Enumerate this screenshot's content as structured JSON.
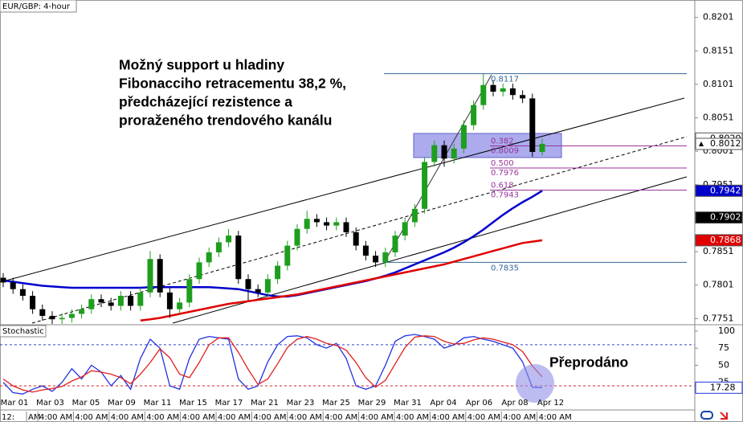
{
  "chart_data": {
    "type": "candlestick",
    "title": "EUR/GBP: 4-hour",
    "annotation": [
      "Možný support u hladiny",
      "Fibonacciho retracementu 38,2 %,",
      "předcházející rezistence a",
      "proraženého trendového kanálu"
    ],
    "ylim": [
      0.7743,
      0.8227
    ],
    "yticks": [
      0.8201,
      0.8151,
      0.8101,
      0.8051,
      0.8001,
      0.7951,
      0.7851,
      0.7801,
      0.7751
    ],
    "candles": {
      "up_color": "#1e9e1e",
      "down_color": "#000000",
      "open": [
        0.7812,
        0.7805,
        0.7795,
        0.7785,
        0.7765,
        0.7755,
        0.775,
        0.7752,
        0.7758,
        0.7765,
        0.778,
        0.7775,
        0.777,
        0.7785,
        0.777,
        0.779,
        0.784,
        0.779,
        0.7765,
        0.7775,
        0.781,
        0.7835,
        0.785,
        0.7865,
        0.7875,
        0.781,
        0.7795,
        0.779,
        0.781,
        0.783,
        0.786,
        0.7885,
        0.79,
        0.7895,
        0.789,
        0.7895,
        0.788,
        0.786,
        0.7845,
        0.7835,
        0.785,
        0.7875,
        0.7895,
        0.7915,
        0.7985,
        0.801,
        0.799,
        0.8005,
        0.804,
        0.807,
        0.81,
        0.809,
        0.8095,
        0.8085,
        0.808,
        0.8
      ],
      "high": [
        0.7819,
        0.7812,
        0.7802,
        0.7792,
        0.7772,
        0.7762,
        0.7759,
        0.7765,
        0.7772,
        0.7787,
        0.7787,
        0.7782,
        0.7792,
        0.7792,
        0.7797,
        0.7852,
        0.7847,
        0.7797,
        0.7782,
        0.7817,
        0.7842,
        0.7857,
        0.7872,
        0.7885,
        0.7882,
        0.7817,
        0.7802,
        0.7817,
        0.7837,
        0.7867,
        0.7892,
        0.7912,
        0.7907,
        0.7902,
        0.7902,
        0.7902,
        0.7887,
        0.7867,
        0.7852,
        0.7857,
        0.7882,
        0.7902,
        0.7922,
        0.7992,
        0.8017,
        0.8017,
        0.8012,
        0.8047,
        0.8077,
        0.8117,
        0.8107,
        0.8102,
        0.8102,
        0.8092,
        0.8087,
        0.802
      ],
      "low": [
        0.7798,
        0.7788,
        0.7778,
        0.7758,
        0.7748,
        0.7743,
        0.7743,
        0.7745,
        0.7751,
        0.7758,
        0.7768,
        0.7763,
        0.7763,
        0.7763,
        0.7763,
        0.7783,
        0.7783,
        0.7752,
        0.7758,
        0.7768,
        0.7803,
        0.7828,
        0.7843,
        0.7858,
        0.7803,
        0.7778,
        0.7783,
        0.7783,
        0.7803,
        0.7823,
        0.7853,
        0.7878,
        0.7888,
        0.7883,
        0.7883,
        0.7873,
        0.7853,
        0.7838,
        0.7828,
        0.7828,
        0.7843,
        0.7868,
        0.7888,
        0.7908,
        0.7978,
        0.7978,
        0.7983,
        0.7998,
        0.8033,
        0.8063,
        0.8083,
        0.8083,
        0.8078,
        0.8073,
        0.7993,
        0.7995
      ],
      "close": [
        0.7805,
        0.7795,
        0.7785,
        0.7765,
        0.7755,
        0.775,
        0.7752,
        0.7758,
        0.7765,
        0.778,
        0.7775,
        0.777,
        0.7785,
        0.777,
        0.779,
        0.784,
        0.779,
        0.7765,
        0.7775,
        0.781,
        0.7835,
        0.785,
        0.7865,
        0.7875,
        0.781,
        0.7795,
        0.779,
        0.781,
        0.783,
        0.786,
        0.7885,
        0.79,
        0.7895,
        0.789,
        0.7895,
        0.788,
        0.786,
        0.7845,
        0.7835,
        0.785,
        0.7875,
        0.7895,
        0.7915,
        0.7985,
        0.801,
        0.799,
        0.8005,
        0.804,
        0.807,
        0.81,
        0.809,
        0.8095,
        0.8085,
        0.808,
        0.8,
        0.8012
      ]
    },
    "series": [
      {
        "color": "#0000cc",
        "values": [
          0.7808,
          0.7806,
          0.7804,
          0.7802,
          0.78,
          0.7799,
          0.7798,
          0.7797,
          0.7797,
          0.7797,
          0.7797,
          0.7797,
          0.7797,
          0.7797,
          0.7797,
          0.7798,
          0.7798,
          0.7798,
          0.7798,
          0.7798,
          0.7798,
          0.7798,
          0.7797,
          0.7796,
          0.7795,
          0.7792,
          0.7789,
          0.7786,
          0.7784,
          0.7784,
          0.7786,
          0.7789,
          0.7792,
          0.7795,
          0.7798,
          0.7801,
          0.7804,
          0.7807,
          0.7811,
          0.7815,
          0.782,
          0.7826,
          0.7832,
          0.7838,
          0.7844,
          0.785,
          0.7857,
          0.7865,
          0.7874,
          0.7884,
          0.7895,
          0.7906,
          0.7916,
          0.7925,
          0.7933,
          0.7942
        ]
      },
      {
        "color": "#e00000",
        "values": [
          null,
          null,
          null,
          null,
          null,
          null,
          null,
          null,
          null,
          null,
          null,
          null,
          null,
          null,
          0.7748,
          0.775,
          0.7752,
          0.7755,
          0.7758,
          0.7761,
          0.7764,
          0.7767,
          0.777,
          0.7773,
          0.7775,
          0.7777,
          0.7779,
          0.7781,
          0.7783,
          0.7785,
          0.7787,
          0.779,
          0.7793,
          0.7796,
          0.7799,
          0.7802,
          0.7805,
          0.7808,
          0.7811,
          0.7814,
          0.7817,
          0.782,
          0.7823,
          0.7826,
          0.7829,
          0.7832,
          0.7836,
          0.784,
          0.7844,
          0.7848,
          0.7852,
          0.7856,
          0.786,
          0.7864,
          0.7866,
          0.7868
        ]
      }
    ],
    "fib_levels": [
      {
        "price": 0.8117
      },
      {
        "ratio": 0.382,
        "price": 0.8009
      },
      {
        "ratio": {
          "value": 0.5,
          "label": "0.500"
        },
        "price": 0.7976
      },
      {
        "ratio": 0.618,
        "price": 0.7943
      },
      {
        "price": 0.7835
      }
    ],
    "price_markers": [
      {
        "price": {
          "value": 0.802,
          "label": "0.8020"
        },
        "color": "#ffffff"
      },
      {
        "price": 0.7902,
        "color": "#000000"
      }
    ],
    "date_labels": [
      "Mar 01",
      "Mar 03",
      "Mar 05",
      "Mar 09",
      "Mar 11",
      "Mar 15",
      "Mar 17",
      "Mar 21",
      "Mar 23",
      "Mar 25",
      "Mar 29",
      "Mar 31",
      "Apr 04",
      "Apr 06",
      "Apr 08",
      "Apr 12"
    ],
    "time_labels": [
      "12:",
      "AM",
      "4:00 AM",
      "4:00 AM",
      "4:00 AM",
      "4:00 AM",
      "4:00 AM",
      "4:00 AM",
      "4:00 AM",
      "4:00 AM",
      "4:00 AM",
      "4:00 AM",
      "4:00 AM",
      "4:00 AM",
      "4:00 AM",
      "4:00 AM",
      "4:00 AM"
    ],
    "stochastic": {
      "title": "Stochastic",
      "annotation": "Přeprodáno",
      "ylim": [
        -7,
        108
      ],
      "yticks": [
        100,
        75,
        50,
        25
      ],
      "levels": [
        {
          "value": 80,
          "color": "#3344cc"
        },
        {
          "value": 20,
          "color": "#dd2222"
        }
      ],
      "series": [
        {
          "color": "#2233dd",
          "values": [
            25,
            10,
            8,
            15,
            20,
            12,
            25,
            45,
            30,
            50,
            40,
            20,
            35,
            15,
            60,
            88,
            75,
            20,
            15,
            60,
            88,
            92,
            90,
            88,
            30,
            15,
            20,
            55,
            80,
            92,
            93,
            90,
            80,
            75,
            82,
            60,
            20,
            15,
            20,
            50,
            85,
            93,
            95,
            92,
            88,
            75,
            80,
            90,
            92,
            88,
            85,
            80,
            75,
            55,
            18,
            17.28
          ]
        },
        {
          "color": "#e02020",
          "values": [
            30,
            20,
            14,
            11,
            14,
            16,
            19,
            27,
            33,
            42,
            40,
            37,
            32,
            23,
            37,
            54,
            74,
            61,
            37,
            32,
            54,
            80,
            90,
            90,
            69,
            44,
            22,
            30,
            52,
            76,
            88,
            92,
            88,
            82,
            79,
            72,
            54,
            32,
            18,
            28,
            52,
            76,
            91,
            93,
            92,
            85,
            81,
            82,
            87,
            90,
            88,
            84,
            80,
            70,
            49,
            33
          ]
        }
      ]
    }
  }
}
